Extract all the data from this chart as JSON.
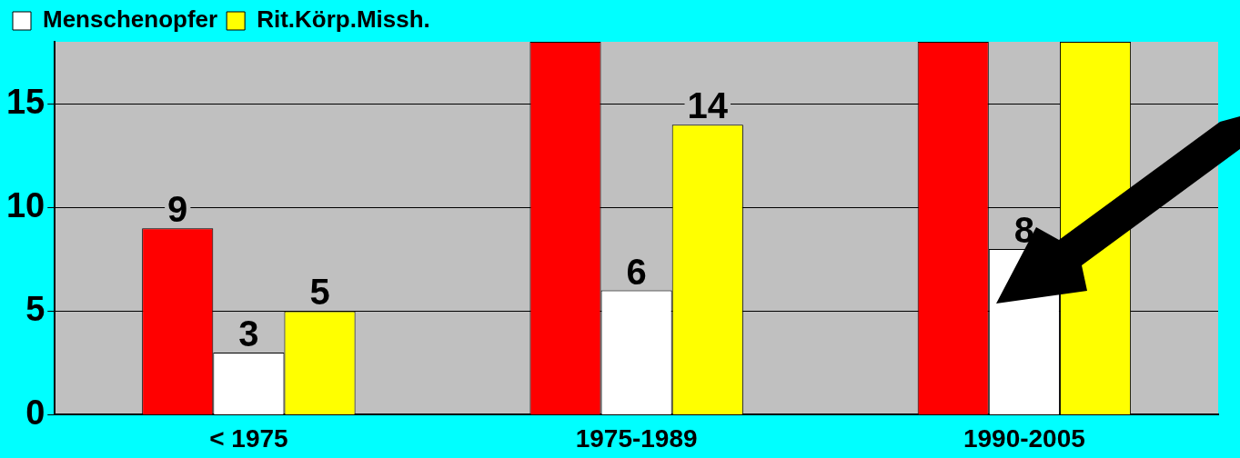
{
  "chart_data": {
    "type": "bar",
    "categories": [
      "< 1975",
      "1975-1989",
      "1990-2005"
    ],
    "series": [
      {
        "color": "#ff0000",
        "values": [
          9,
          18,
          18
        ],
        "value_labels": [
          "9",
          null,
          null
        ]
      },
      {
        "name": "Menschenopfer",
        "color": "#ffffff",
        "values": [
          3,
          6,
          8
        ],
        "value_labels": [
          "3",
          "6",
          "8"
        ]
      },
      {
        "name": "Rit.Körp.Missh.",
        "color": "#ffff00",
        "values": [
          5,
          14,
          18
        ],
        "value_labels": [
          "5",
          "14",
          null
        ]
      }
    ],
    "ylim": [
      0,
      18
    ],
    "yticks": [
      0,
      5,
      10,
      15
    ],
    "grid": "y",
    "legend": "top left"
  }
}
